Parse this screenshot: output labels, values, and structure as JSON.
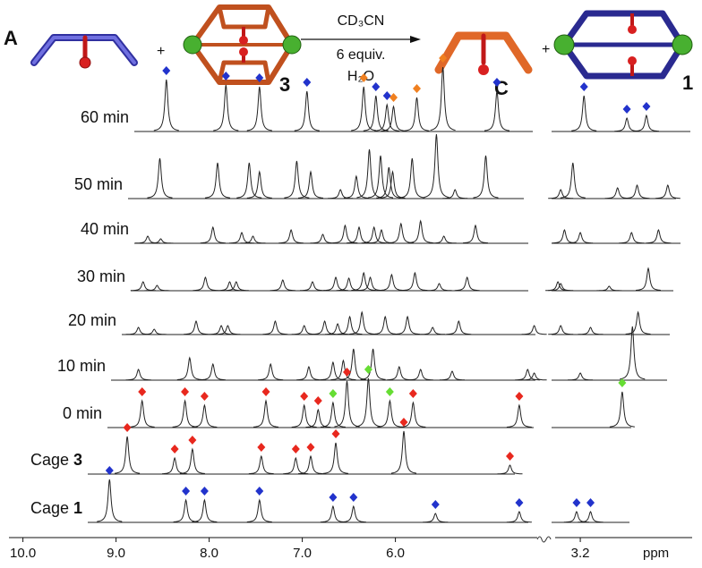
{
  "chart_data": {
    "type": "nmr-stack",
    "xlabel": "ppm",
    "xlim": [
      10.15,
      4.48
    ],
    "x2lim": [
      3.47,
      2.0
    ],
    "xticks": [
      {
        "value": 10,
        "label": "10.0"
      },
      {
        "value": 9,
        "label": "9.0"
      },
      {
        "value": 8,
        "label": "8.0"
      },
      {
        "value": 7,
        "label": "7.0"
      },
      {
        "value": 6,
        "label": "6.0"
      }
    ],
    "x2ticks": [
      3.2
    ],
    "scheme": {
      "left": "A",
      "plus1": "+",
      "cage_left": "3",
      "conditions": [
        "CD₃CN",
        "6 equiv.",
        "H₂O"
      ],
      "product": "C",
      "plus2": "+",
      "cage_right": "1"
    },
    "traces": [
      {
        "label": "60 min",
        "peaks": [
          8.46,
          7.82,
          7.46,
          6.95,
          6.34,
          6.21,
          6.09,
          6.02,
          5.77,
          5.49,
          4.91
        ],
        "heights": [
          58,
          52,
          50,
          45,
          50,
          40,
          30,
          28,
          38,
          72,
          45
        ],
        "peaks2": [
          3.16,
          2.7,
          2.49
        ],
        "heights2": [
          40,
          15,
          18
        ],
        "marker_x": [
          8.46,
          7.82,
          7.46,
          6.95,
          6.34,
          6.21,
          6.09,
          6.02,
          5.77,
          5.49,
          4.91
        ],
        "marker_colors": [
          "#2233cc",
          "#2233cc",
          "#2233cc",
          "#2233cc",
          "#f08020",
          "#2233cc",
          "#2233cc",
          "#f08020",
          "#f08020",
          "#f08020",
          "#2233cc"
        ],
        "marker_x2": [
          3.16,
          2.7,
          2.49
        ],
        "marker_colors2": [
          "#2233cc",
          "#2233cc",
          "#2233cc"
        ]
      },
      {
        "label": "50 min",
        "peaks": [
          8.53,
          7.91,
          7.57,
          7.46,
          7.06,
          6.91,
          6.59,
          6.42,
          6.28,
          6.16,
          6.07,
          6.03,
          5.82,
          5.56,
          5.36,
          5.03
        ],
        "heights": [
          45,
          40,
          40,
          30,
          42,
          30,
          10,
          25,
          55,
          48,
          35,
          30,
          45,
          72,
          10,
          48
        ],
        "peaks2": [
          3.41,
          3.28,
          2.8,
          2.59,
          2.26
        ],
        "heights2": [
          10,
          40,
          12,
          15,
          15
        ]
      },
      {
        "label": "40 min",
        "peaks": [
          8.66,
          8.52,
          7.96,
          7.65,
          7.53,
          7.12,
          6.78,
          6.54,
          6.39,
          6.23,
          6.15,
          5.94,
          5.73,
          5.48,
          5.14
        ],
        "heights": [
          8,
          5,
          18,
          12,
          8,
          15,
          10,
          20,
          18,
          18,
          15,
          22,
          25,
          8,
          20
        ],
        "peaks2": [
          3.37,
          3.2,
          2.65,
          2.36
        ],
        "heights2": [
          15,
          12,
          12,
          15
        ]
      },
      {
        "label": "30 min",
        "peaks": [
          8.71,
          8.56,
          8.04,
          7.78,
          7.71,
          7.21,
          6.89,
          6.64,
          6.5,
          6.34,
          6.27,
          6.04,
          5.79,
          5.53,
          5.23
        ],
        "heights": [
          10,
          6,
          15,
          10,
          10,
          12,
          10,
          15,
          14,
          20,
          15,
          18,
          20,
          8,
          15
        ],
        "peaks2": [
          3.44,
          3.41,
          2.89,
          2.47
        ],
        "heights2": [
          10,
          8,
          5,
          25
        ]
      },
      {
        "label": "20 min",
        "peaks": [
          8.76,
          8.59,
          8.14,
          7.87,
          7.8,
          7.29,
          6.98,
          6.76,
          6.62,
          6.49,
          6.36,
          6.11,
          5.87,
          5.6,
          5.32,
          4.51
        ],
        "heights": [
          8,
          6,
          15,
          10,
          10,
          15,
          10,
          15,
          12,
          20,
          25,
          20,
          20,
          8,
          15,
          10
        ],
        "peaks2": [
          3.41,
          3.09,
          2.58
        ],
        "heights2": [
          10,
          8,
          25
        ]
      },
      {
        "label": "10 min",
        "peaks": [
          8.76,
          8.21,
          7.96,
          7.34,
          6.93,
          6.67,
          6.56,
          6.45,
          6.24,
          5.96,
          5.73,
          5.39,
          4.58,
          4.51
        ],
        "heights": [
          12,
          25,
          18,
          18,
          15,
          20,
          22,
          35,
          35,
          15,
          12,
          10,
          12,
          8
        ],
        "peaks2": [
          3.2,
          2.64
        ],
        "heights2": [
          8,
          60
        ]
      },
      {
        "label": "0 min",
        "peaks": [
          8.72,
          8.26,
          8.05,
          7.39,
          6.98,
          6.83,
          6.67,
          6.52,
          6.29,
          6.06,
          5.81,
          4.67
        ],
        "heights": [
          30,
          30,
          25,
          30,
          25,
          20,
          28,
          52,
          55,
          30,
          28,
          25
        ],
        "peaks2": [
          2.75
        ],
        "heights2": [
          40
        ],
        "marker_x": [
          8.72,
          8.26,
          8.05,
          7.39,
          6.98,
          6.83,
          6.67,
          6.52,
          6.29,
          6.06,
          5.81,
          4.67
        ],
        "marker_colors": [
          "#e8281e",
          "#e8281e",
          "#e8281e",
          "#e8281e",
          "#e8281e",
          "#e8281e",
          "#66dd33",
          "#e8281e",
          "#66dd33",
          "#66dd33",
          "#e8281e",
          "#e8281e"
        ],
        "marker_x2": [
          2.75
        ],
        "marker_colors2": [
          "#66dd33"
        ]
      },
      {
        "label": "Cage",
        "label_bold": "3",
        "peaks": [
          8.88,
          8.37,
          8.18,
          7.44,
          7.07,
          6.91,
          6.64,
          5.91,
          4.77
        ],
        "heights": [
          42,
          18,
          28,
          20,
          18,
          20,
          35,
          48,
          10
        ],
        "marker_x": [
          8.88,
          8.37,
          8.18,
          7.44,
          7.07,
          6.91,
          6.64,
          5.91,
          4.77
        ],
        "marker_colors": [
          "#e8281e",
          "#e8281e",
          "#e8281e",
          "#e8281e",
          "#e8281e",
          "#e8281e",
          "#e8281e",
          "#e8281e",
          "#e8281e"
        ]
      },
      {
        "label": "Cage",
        "label_bold": "1",
        "peaks": [
          9.07,
          8.25,
          8.05,
          7.46,
          6.67,
          6.45,
          5.57,
          4.67
        ],
        "heights": [
          48,
          25,
          25,
          25,
          18,
          18,
          10,
          12
        ],
        "peaks2": [
          3.24,
          3.09
        ],
        "heights2": [
          12,
          12
        ],
        "marker_x": [
          9.07,
          8.25,
          8.05,
          7.46,
          6.67,
          6.45,
          5.57,
          4.67
        ],
        "marker_colors": [
          "#2233cc",
          "#2233cc",
          "#2233cc",
          "#2233cc",
          "#2233cc",
          "#2233cc",
          "#2233cc",
          "#2233cc"
        ],
        "marker_x2": [
          3.24,
          3.09
        ],
        "marker_colors2": [
          "#2233cc",
          "#2233cc"
        ]
      }
    ]
  }
}
